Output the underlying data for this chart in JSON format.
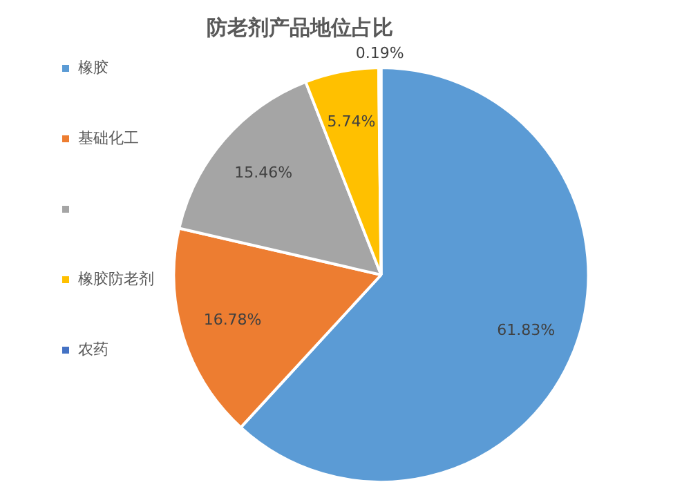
{
  "chart_data": {
    "type": "pie",
    "title": "防老剂产品地位占比",
    "categories": [
      "橡胶",
      "基础化工",
      null,
      "橡胶防老剂",
      "农药"
    ],
    "values": [
      61.83,
      16.78,
      15.46,
      5.74,
      0.19
    ],
    "colors": [
      "#5b9bd5",
      "#ed7d31",
      "#a5a5a5",
      "#ffc000",
      "#4472c4"
    ],
    "value_labels": [
      "61.83%",
      "16.78%",
      "15.46%",
      "5.74%",
      "0.19%"
    ],
    "legend": "left"
  }
}
